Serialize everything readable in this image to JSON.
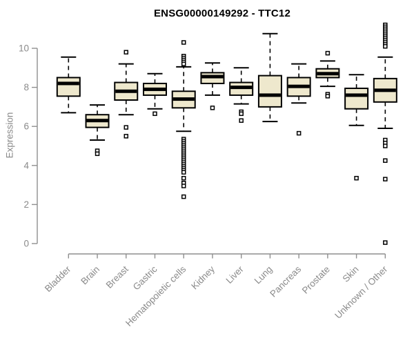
{
  "chart_data": {
    "type": "boxplot",
    "title": "ENSG00000149292 - TTC12",
    "ylabel": "Expression",
    "xlabel": "",
    "ylim": [
      -0.3,
      11.4
    ],
    "yticks": [
      0,
      2,
      4,
      6,
      8,
      10
    ],
    "grid": false,
    "legend_position": "none",
    "box_fill_color": "#EEE8CD",
    "box_border_color": "#000000",
    "axis_color": "#8e8e8e",
    "axis_text_color": "#8a8a8a",
    "categories": [
      "Bladder",
      "Brain",
      "Breast",
      "Gastric",
      "Hematopoietic cells",
      "Kidney",
      "Liver",
      "Lung",
      "Pancreas",
      "Prostate",
      "Skin",
      "Unknown / Other"
    ],
    "series": [
      {
        "name": "Bladder",
        "whisker_low": 6.7,
        "q1": 7.55,
        "median": 8.2,
        "q3": 8.5,
        "whisker_high": 9.55,
        "outliers": []
      },
      {
        "name": "Brain",
        "whisker_low": 5.3,
        "q1": 5.95,
        "median": 6.3,
        "q3": 6.6,
        "whisker_high": 7.1,
        "outliers": [
          4.75,
          4.6
        ]
      },
      {
        "name": "Breast",
        "whisker_low": 6.6,
        "q1": 7.35,
        "median": 7.8,
        "q3": 8.25,
        "whisker_high": 9.2,
        "outliers": [
          9.8,
          5.95,
          5.5
        ]
      },
      {
        "name": "Gastric",
        "whisker_low": 6.9,
        "q1": 7.6,
        "median": 7.9,
        "q3": 8.2,
        "whisker_high": 8.7,
        "outliers": [
          6.65
        ]
      },
      {
        "name": "Hematopoietic cells",
        "whisker_low": 5.75,
        "q1": 6.95,
        "median": 7.4,
        "q3": 7.8,
        "whisker_high": 9.05,
        "outliers": [
          10.3,
          9.6,
          9.5,
          9.4,
          9.3,
          9.2,
          5.35,
          5.25,
          5.15,
          5.05,
          4.95,
          4.85,
          4.75,
          4.65,
          4.55,
          4.45,
          4.35,
          4.25,
          4.15,
          4.05,
          3.95,
          3.85,
          3.75,
          3.65,
          3.35,
          3.1,
          2.95,
          2.4
        ]
      },
      {
        "name": "Kidney",
        "whisker_low": 7.6,
        "q1": 8.2,
        "median": 8.55,
        "q3": 8.75,
        "whisker_high": 9.25,
        "outliers": [
          6.95
        ]
      },
      {
        "name": "Liver",
        "whisker_low": 7.15,
        "q1": 7.6,
        "median": 8.0,
        "q3": 8.25,
        "whisker_high": 9.0,
        "outliers": [
          6.75,
          6.65,
          6.3
        ]
      },
      {
        "name": "Lung",
        "whisker_low": 6.25,
        "q1": 7.0,
        "median": 7.6,
        "q3": 8.6,
        "whisker_high": 10.75,
        "outliers": []
      },
      {
        "name": "Pancreas",
        "whisker_low": 7.2,
        "q1": 7.55,
        "median": 8.05,
        "q3": 8.5,
        "whisker_high": 9.2,
        "outliers": [
          5.65
        ]
      },
      {
        "name": "Prostate",
        "whisker_low": 8.05,
        "q1": 8.5,
        "median": 8.7,
        "q3": 8.95,
        "whisker_high": 9.35,
        "outliers": [
          9.75,
          7.65,
          7.55
        ]
      },
      {
        "name": "Skin",
        "whisker_low": 6.05,
        "q1": 6.9,
        "median": 7.6,
        "q3": 7.95,
        "whisker_high": 8.65,
        "outliers": [
          3.35
        ]
      },
      {
        "name": "Unknown / Other",
        "whisker_low": 5.9,
        "q1": 7.25,
        "median": 7.85,
        "q3": 8.45,
        "whisker_high": 9.55,
        "outliers": [
          11.2,
          11.1,
          11.0,
          10.9,
          10.8,
          10.7,
          10.6,
          10.5,
          10.4,
          10.3,
          10.2,
          10.1,
          5.3,
          5.15,
          5.0,
          4.25,
          3.3,
          0.05
        ]
      }
    ]
  }
}
